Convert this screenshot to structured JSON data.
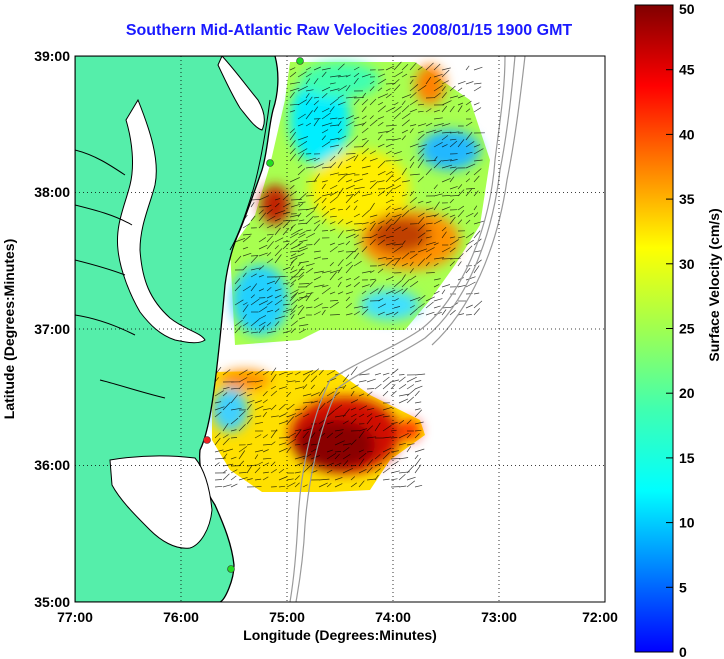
{
  "title": "Southern Mid-Atlantic Raw Velocities 2008/01/15 1900 GMT",
  "map": {
    "xlabel": "Longitude (Degrees:Minutes)",
    "ylabel": "Latitude (Degrees:Minutes)",
    "x_ticks": [
      "77:00",
      "76:00",
      "75:00",
      "74:00",
      "73:00",
      "72:00"
    ],
    "y_ticks": [
      "39:00",
      "38:00",
      "37:00",
      "36:00",
      "35:00"
    ],
    "x_range": [
      -77,
      -72
    ],
    "y_range": [
      35,
      39
    ],
    "grid": "dotted",
    "land_color": "#55eeaa",
    "coast_color": "#000000",
    "bathymetry_color": "#999999"
  },
  "colorbar": {
    "label": "Surface Velocity (cm/s)",
    "ticks": [
      "0",
      "5",
      "10",
      "15",
      "20",
      "25",
      "30",
      "35",
      "40",
      "45",
      "50"
    ],
    "range": [
      0,
      50
    ],
    "colormap": "jet"
  },
  "stations": [
    {
      "color": "#22dd22"
    },
    {
      "color": "#22dd22"
    },
    {
      "color": "#ee2222"
    },
    {
      "color": "#22dd22"
    }
  ]
}
